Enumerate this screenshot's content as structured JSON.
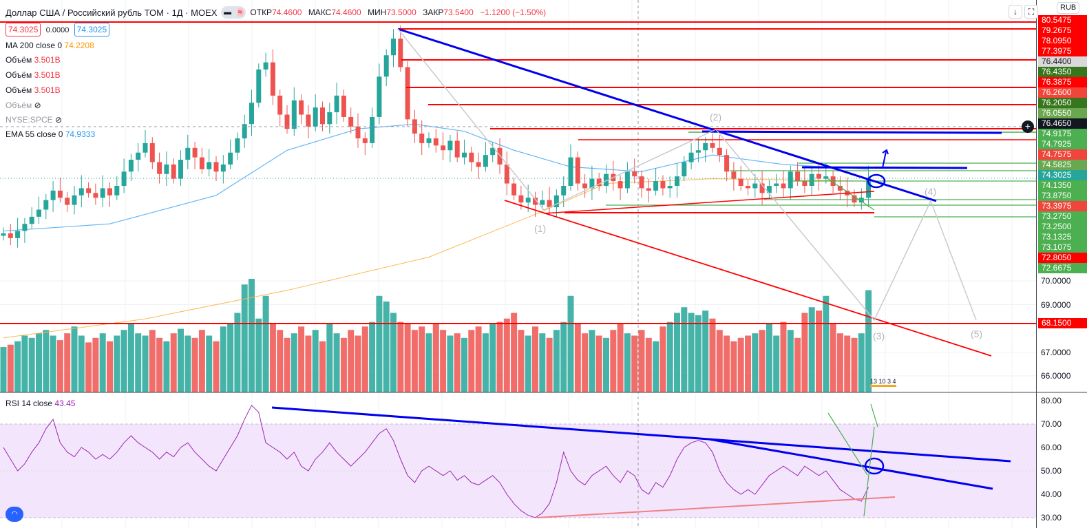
{
  "header": {
    "title": "Доллар США / Российский рубль ТОМ · 1Д · MOEX",
    "open_label": "ОТКР",
    "open": "74.4600",
    "high_label": "МАКС",
    "high": "74.4600",
    "low_label": "МИН",
    "low": "73.5000",
    "close_label": "ЗАКР",
    "close": "73.5400",
    "change": "−1.1200 (−1.50%)"
  },
  "quote": {
    "bid": "74.3025",
    "spread": "0.0000",
    "ask": "74.3025"
  },
  "legend": {
    "ma": {
      "label": "MA 200 close 0",
      "value": "74.2208"
    },
    "vol": [
      {
        "label": "Объём",
        "value": "3.501B"
      },
      {
        "label": "Объём",
        "value": "3.501B"
      },
      {
        "label": "Объём",
        "value": "3.501B"
      }
    ],
    "vol_hidden": "Объём",
    "symbol_hidden": "NYSE:SPCE",
    "ema": {
      "label": "EMA 55 close 0",
      "value": "74.9333"
    },
    "rsi": {
      "label": "RSI 14 close",
      "value": "43.45"
    }
  },
  "currency": "RUB",
  "waves": [
    "(1)",
    "(2)",
    "(3)",
    "(4)",
    "(5)"
  ],
  "events": "13 10 3 4",
  "price_labels": [
    {
      "t": "80.5475",
      "c": "#ff0000"
    },
    {
      "t": "79.2675",
      "c": "#ff0000"
    },
    {
      "t": "78.0950",
      "c": "#ff0000"
    },
    {
      "t": "77.3975",
      "c": "#ff0000"
    },
    {
      "t": "76.4400",
      "c": "#d9d9d9",
      "fg": "#131722"
    },
    {
      "t": "76.4350",
      "c": "#38761d"
    },
    {
      "t": "76.3875",
      "c": "#ff0000"
    },
    {
      "t": "76.2600",
      "c": "#f0453a"
    },
    {
      "t": "76.2050",
      "c": "#38761d"
    },
    {
      "t": "76.0550",
      "c": "#6aa84f"
    },
    {
      "t": "76.4650",
      "c": "#131722"
    },
    {
      "t": "74.9175",
      "c": "#4caf50"
    },
    {
      "t": "74.7925",
      "c": "#4caf50"
    },
    {
      "t": "74.7575",
      "c": "#f0453a"
    },
    {
      "t": "74.5825",
      "c": "#6aa84f"
    },
    {
      "t": "74.3025",
      "c": "#26a69a"
    },
    {
      "t": "74.1350",
      "c": "#4caf50"
    },
    {
      "t": "73.8750",
      "c": "#4caf50"
    },
    {
      "t": "73.3975",
      "c": "#f0453a"
    },
    {
      "t": "73.2750",
      "c": "#4caf50"
    },
    {
      "t": "73.2500",
      "c": "#4caf50"
    },
    {
      "t": "73.1325",
      "c": "#4caf50"
    },
    {
      "t": "73.1075",
      "c": "#4caf50"
    },
    {
      "t": "72.8050",
      "c": "#ff0000"
    },
    {
      "t": "72.6675",
      "c": "#4caf50"
    }
  ],
  "price_ticks": [
    "70.0000",
    "69.0000",
    "67.0000",
    "66.0000"
  ],
  "level_68": "68.1500",
  "rsi_ticks": [
    "80.00",
    "70.00",
    "60.00",
    "50.00",
    "40.00",
    "30.00"
  ],
  "colors": {
    "up": "#26a69a",
    "down": "#ef5350",
    "ema": "#64b5f6",
    "ma": "#ffb74d",
    "rsi": "#9c27b0",
    "band": "#f3e5fc"
  },
  "chart_data": {
    "type": "candlestick",
    "title": "USD/RUB TOM 1D",
    "price_range": [
      65.5,
      81
    ],
    "closes": [
      72.0,
      71.8,
      72.1,
      72.4,
      72.7,
      73.0,
      73.4,
      73.8,
      73.5,
      73.2,
      73.6,
      73.9,
      73.7,
      73.5,
      73.9,
      73.6,
      74.0,
      74.6,
      75.1,
      75.4,
      75.8,
      75.0,
      74.5,
      74.9,
      74.3,
      75.1,
      75.6,
      75.2,
      74.7,
      75.0,
      74.6,
      74.9,
      75.4,
      76.0,
      76.6,
      77.5,
      78.9,
      79.2,
      77.8,
      77.0,
      76.4,
      77.6,
      77.0,
      76.5,
      77.3,
      76.6,
      77.1,
      77.8,
      76.9,
      76.5,
      76.0,
      75.8,
      76.9,
      78.6,
      79.5,
      80.2,
      79.0,
      76.8,
      76.2,
      75.8,
      76.0,
      75.7,
      75.5,
      75.9,
      75.2,
      75.4,
      75.0,
      74.8,
      75.3,
      75.6,
      74.9,
      74.1,
      73.6,
      73.3,
      73.5,
      73.2,
      73.4,
      73.1,
      73.6,
      74.0,
      75.2,
      74.1,
      73.9,
      74.3,
      74.0,
      74.5,
      74.2,
      73.9,
      74.6,
      74.4,
      73.9,
      73.8,
      74.2,
      73.9,
      74.0,
      74.4,
      75.0,
      75.4,
      75.5,
      75.8,
      75.6,
      75.3,
      74.6,
      74.3,
      74.0,
      73.9,
      74.1,
      73.7,
      74.0,
      74.1,
      73.9,
      74.6,
      74.2,
      74.0,
      74.5,
      74.3,
      74.4,
      74.0,
      73.8,
      73.6,
      73.3,
      73.5,
      74.3
    ],
    "volumes": [
      40,
      42,
      45,
      50,
      48,
      52,
      55,
      50,
      46,
      52,
      58,
      50,
      44,
      48,
      52,
      45,
      50,
      55,
      60,
      52,
      50,
      55,
      48,
      45,
      52,
      56,
      50,
      48,
      55,
      50,
      45,
      58,
      60,
      70,
      95,
      100,
      65,
      85,
      60,
      55,
      48,
      52,
      58,
      50,
      55,
      45,
      60,
      52,
      48,
      55,
      50,
      58,
      62,
      85,
      80,
      70,
      62,
      60,
      55,
      58,
      52,
      60,
      55,
      50,
      52,
      48,
      55,
      58,
      52,
      60,
      62,
      65,
      70,
      55,
      50,
      58,
      52,
      48,
      55,
      62,
      85,
      60,
      52,
      55,
      50,
      48,
      55,
      60,
      52,
      50,
      55,
      48,
      45,
      58,
      62,
      70,
      75,
      70,
      68,
      72,
      65,
      55,
      50,
      45,
      48,
      50,
      52,
      55,
      60,
      50,
      62,
      55,
      48,
      70,
      75,
      72,
      85,
      60,
      52,
      50,
      48,
      52,
      90
    ],
    "rsi": [
      60,
      55,
      50,
      53,
      58,
      62,
      68,
      72,
      62,
      58,
      56,
      60,
      58,
      55,
      57,
      55,
      58,
      62,
      65,
      62,
      60,
      58,
      55,
      58,
      56,
      60,
      62,
      58,
      55,
      52,
      50,
      55,
      60,
      65,
      72,
      78,
      75,
      62,
      60,
      58,
      55,
      58,
      52,
      50,
      55,
      58,
      62,
      58,
      55,
      52,
      55,
      58,
      62,
      66,
      68,
      63,
      55,
      48,
      45,
      50,
      52,
      50,
      48,
      50,
      46,
      48,
      45,
      44,
      46,
      48,
      45,
      40,
      36,
      33,
      31,
      30,
      32,
      36,
      45,
      58,
      50,
      46,
      44,
      48,
      50,
      52,
      48,
      45,
      50,
      48,
      42,
      40,
      45,
      43,
      48,
      55,
      60,
      62,
      63,
      62,
      58,
      50,
      45,
      42,
      40,
      42,
      40,
      44,
      48,
      50,
      52,
      50,
      48,
      52,
      50,
      48,
      50,
      46,
      42,
      40,
      38,
      37,
      43
    ],
    "ema55": [
      [
        0,
        72.1
      ],
      [
        15,
        72.4
      ],
      [
        30,
        73.6
      ],
      [
        40,
        75.5
      ],
      [
        50,
        76.4
      ],
      [
        58,
        76.6
      ],
      [
        65,
        76.3
      ],
      [
        72,
        75.5
      ],
      [
        80,
        74.8
      ],
      [
        90,
        74.6
      ],
      [
        100,
        75.3
      ],
      [
        110,
        74.9
      ],
      [
        122,
        74.7
      ]
    ],
    "ma200": [
      [
        0,
        67.6
      ],
      [
        20,
        68.4
      ],
      [
        40,
        69.6
      ],
      [
        60,
        71.0
      ],
      [
        75,
        72.8
      ],
      [
        85,
        74.1
      ],
      [
        100,
        74.3
      ],
      [
        122,
        74.2
      ]
    ],
    "rsi_range": [
      28,
      82
    ],
    "rsi_band": [
      30,
      70
    ]
  }
}
